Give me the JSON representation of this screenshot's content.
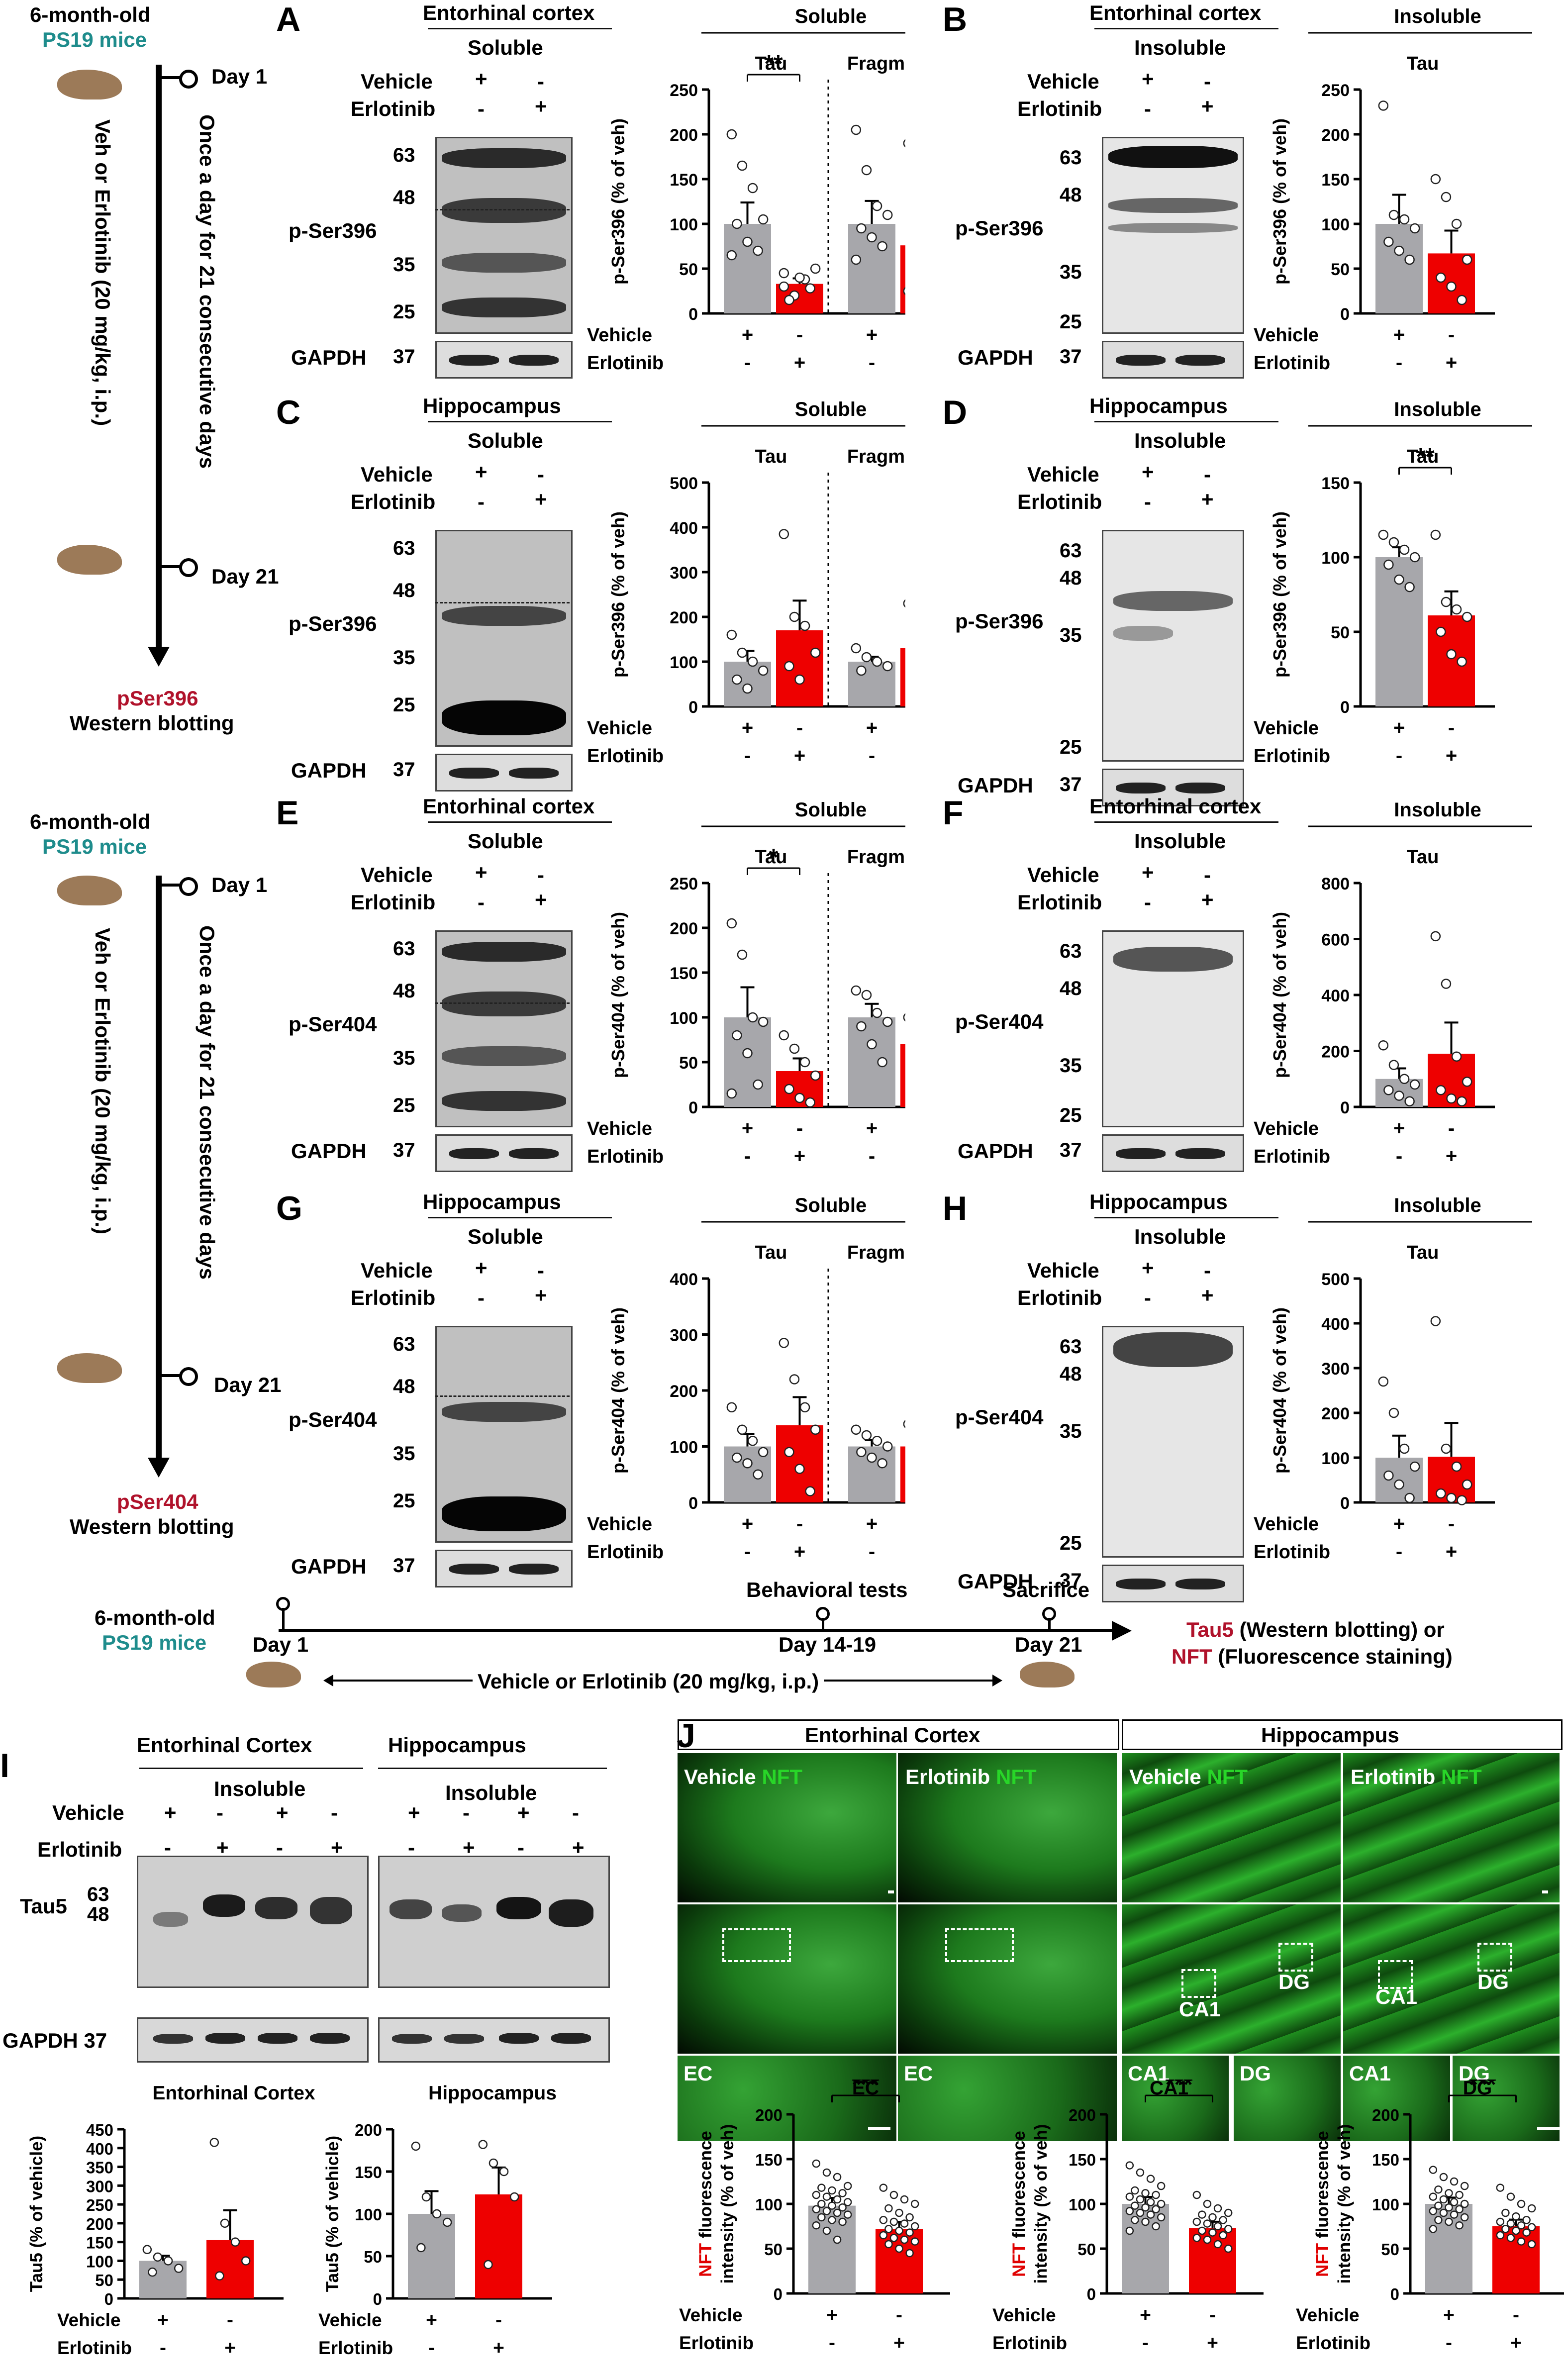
{
  "panels": {
    "A": {
      "label": "A",
      "region": "Entorhinal cortex",
      "fraction": "Soluble",
      "section": "Soluble",
      "marker": "p-Ser396",
      "mw": [
        "63",
        "48",
        "35",
        "25"
      ]
    },
    "B": {
      "label": "B",
      "region": "Entorhinal cortex",
      "fraction": "Insoluble",
      "section": "Insoluble",
      "marker": "p-Ser396",
      "mw": [
        "63",
        "48",
        "35",
        "25"
      ]
    },
    "C": {
      "label": "C",
      "region": "Hippocampus",
      "fraction": "Soluble",
      "section": "Soluble",
      "marker": "p-Ser396",
      "mw": [
        "63",
        "48",
        "35",
        "25"
      ]
    },
    "D": {
      "label": "D",
      "region": "Hippocampus",
      "fraction": "Insoluble",
      "section": "Insoluble",
      "marker": "p-Ser396",
      "mw": [
        "63",
        "48",
        "35",
        "25"
      ]
    },
    "E": {
      "label": "E",
      "region": "Entorhinal cortex",
      "fraction": "Soluble",
      "section": "Soluble",
      "marker": "p-Ser404",
      "mw": [
        "63",
        "48",
        "35",
        "25"
      ]
    },
    "F": {
      "label": "F",
      "region": "Entorhinal cortex",
      "fraction": "Insoluble",
      "section": "Insoluble",
      "marker": "p-Ser404",
      "mw": [
        "63",
        "48",
        "35",
        "25"
      ]
    },
    "G": {
      "label": "G",
      "region": "Hippocampus",
      "fraction": "Soluble",
      "section": "Soluble",
      "marker": "p-Ser404",
      "mw": [
        "63",
        "48",
        "35",
        "25"
      ]
    },
    "H": {
      "label": "H",
      "region": "Hippocampus",
      "fraction": "Insoluble",
      "section": "Insoluble",
      "marker": "p-Ser404",
      "mw": [
        "63",
        "48",
        "35",
        "25"
      ]
    },
    "I": {
      "label": "I",
      "region1": "Entorhinal Cortex",
      "region2": "Hippocampus",
      "fraction": "Insoluble",
      "marker": "Tau5",
      "mw": [
        "63",
        "48"
      ],
      "gapdh": "GAPDH 37"
    },
    "J": {
      "label": "J",
      "region1": "Entorhinal Cortex",
      "region2": "Hippocampus",
      "vehicle": "Vehicle",
      "erlotinib": "Erlotinib",
      "nft": "NFT",
      "ec": "EC",
      "ca1": "CA1",
      "dg": "DG"
    }
  },
  "common": {
    "vehicle": "Vehicle",
    "erlotinib": "Erlotinib",
    "plus": "+",
    "minus": "-",
    "gapdh": "GAPDH",
    "gapdh_mw": "37",
    "tau": "Tau",
    "fragments": "Fragments"
  },
  "timeline1": {
    "age": "6-month-old",
    "strain": "PS19 mice",
    "day1": "Day 1",
    "day21": "Day 21",
    "regimen": "Once a day for 21 consecutive days",
    "treatment": "Veh or Erlotinib (20 mg/kg, i.p.)",
    "endpoint": "pSer396",
    "method": "Western blotting"
  },
  "timeline2": {
    "age": "6-month-old",
    "strain": "PS19 mice",
    "day1": "Day 1",
    "day21": "Day 21",
    "regimen": "Once a day for 21 consecutive days",
    "treatment": "Veh or Erlotinib (20 mg/kg, i.p.)",
    "endpoint": "pSer404",
    "method": "Western blotting"
  },
  "timeline3": {
    "age": "6-month-old",
    "strain": "PS19 mice",
    "day1": "Day 1",
    "behavior": "Behavioral tests",
    "days_behavior": "Day 14-19",
    "sacrifice": "Sacrifice",
    "day21": "Day 21",
    "treatment": "Vehicle or Erlotinib (20 mg/kg, i.p.)",
    "out1_red": "Tau5",
    "out1": "(Western blotting) or",
    "out2_red": "NFT",
    "out2": "(Fluorescence staining)"
  },
  "colors": {
    "vehicle": "#a7a7ab",
    "erlotinib": "#ee0000",
    "nft": "#28d628",
    "accent_red": "#b0122b",
    "accent_teal": "#1e8c8c"
  },
  "chart_data": [
    {
      "id": "A",
      "type": "bar",
      "title": "Soluble",
      "ylabel": "p-Ser396 (% of veh)",
      "ylim": [
        0,
        250
      ],
      "yticks": [
        0,
        50,
        100,
        150,
        200,
        250
      ],
      "groups": [
        "Tau",
        "Fragments"
      ],
      "series": [
        {
          "name": "Vehicle",
          "values": [
            100,
            100
          ]
        },
        {
          "name": "Erlotinib",
          "values": [
            33,
            76
          ]
        }
      ],
      "points": [
        [
          [
            200,
            165,
            140,
            105,
            100,
            80,
            70,
            65
          ],
          [
            30,
            20,
            38,
            50,
            15,
            40,
            28,
            45
          ]
        ],
        [
          [
            205,
            160,
            120,
            110,
            95,
            85,
            75,
            60
          ],
          [
            190,
            120,
            95,
            80,
            60,
            40,
            30,
            25
          ]
        ]
      ],
      "sig": [
        {
          "group": 0,
          "label": "**"
        }
      ]
    },
    {
      "id": "B",
      "type": "bar",
      "title": "Insoluble",
      "ylabel": "p-Ser396 (% of veh)",
      "ylim": [
        0,
        250
      ],
      "yticks": [
        0,
        50,
        100,
        150,
        200,
        250
      ],
      "groups": [
        "Tau"
      ],
      "series": [
        {
          "name": "Vehicle",
          "values": [
            100
          ]
        },
        {
          "name": "Erlotinib",
          "values": [
            67
          ]
        }
      ],
      "points": [
        [
          [
            232,
            110,
            105,
            95,
            80,
            70,
            60
          ],
          [
            150,
            130,
            100,
            60,
            40,
            30,
            15
          ]
        ]
      ],
      "sig": []
    },
    {
      "id": "C",
      "type": "bar",
      "title": "Soluble",
      "ylabel": "p-Ser396 (% of veh)",
      "ylim": [
        0,
        500
      ],
      "yticks": [
        0,
        100,
        200,
        300,
        400,
        500
      ],
      "groups": [
        "Tau",
        "Fragments"
      ],
      "series": [
        {
          "name": "Vehicle",
          "values": [
            100,
            100
          ]
        },
        {
          "name": "Erlotinib",
          "values": [
            170,
            130
          ]
        }
      ],
      "points": [
        [
          [
            160,
            120,
            100,
            80,
            60,
            40
          ],
          [
            385,
            200,
            180,
            120,
            90,
            60
          ]
        ],
        [
          [
            130,
            110,
            100,
            90,
            80
          ],
          [
            230,
            150,
            120,
            80,
            60
          ]
        ]
      ],
      "sig": []
    },
    {
      "id": "D",
      "type": "bar",
      "title": "Insoluble",
      "ylabel": "p-Ser396 (% of veh)",
      "ylim": [
        0,
        150
      ],
      "yticks": [
        0,
        50,
        100,
        150
      ],
      "groups": [
        "Tau"
      ],
      "series": [
        {
          "name": "Vehicle",
          "values": [
            100
          ]
        },
        {
          "name": "Erlotinib",
          "values": [
            61
          ]
        }
      ],
      "points": [
        [
          [
            115,
            110,
            105,
            100,
            95,
            85,
            80
          ],
          [
            115,
            70,
            65,
            60,
            50,
            35,
            30
          ]
        ]
      ],
      "sig": [
        {
          "group": 0,
          "label": "**"
        }
      ]
    },
    {
      "id": "E",
      "type": "bar",
      "title": "Soluble",
      "ylabel": "p-Ser404 (% of veh)",
      "ylim": [
        0,
        250
      ],
      "yticks": [
        0,
        50,
        100,
        150,
        200,
        250
      ],
      "groups": [
        "Tau",
        "Fragments"
      ],
      "series": [
        {
          "name": "Vehicle",
          "values": [
            100,
            100
          ]
        },
        {
          "name": "Erlotinib",
          "values": [
            40,
            70
          ]
        }
      ],
      "points": [
        [
          [
            205,
            170,
            100,
            95,
            80,
            60,
            25,
            15
          ],
          [
            80,
            65,
            50,
            35,
            20,
            10,
            5
          ]
        ],
        [
          [
            130,
            125,
            105,
            95,
            90,
            70,
            50
          ],
          [
            100,
            90,
            70,
            60,
            50,
            40,
            10
          ]
        ]
      ],
      "sig": [
        {
          "group": 0,
          "label": "*"
        }
      ]
    },
    {
      "id": "F",
      "type": "bar",
      "title": "Insoluble",
      "ylabel": "p-Ser404 (% of veh)",
      "ylim": [
        0,
        800
      ],
      "yticks": [
        0,
        200,
        400,
        600,
        800
      ],
      "groups": [
        "Tau"
      ],
      "series": [
        {
          "name": "Vehicle",
          "values": [
            100
          ]
        },
        {
          "name": "Erlotinib",
          "values": [
            190
          ]
        }
      ],
      "points": [
        [
          [
            220,
            150,
            100,
            80,
            60,
            40,
            20
          ],
          [
            610,
            440,
            180,
            90,
            60,
            30,
            20
          ]
        ]
      ],
      "sig": []
    },
    {
      "id": "G",
      "type": "bar",
      "title": "Soluble",
      "ylabel": "p-Ser404 (% of veh)",
      "ylim": [
        0,
        400
      ],
      "yticks": [
        0,
        100,
        200,
        300,
        400
      ],
      "groups": [
        "Tau",
        "Fragments"
      ],
      "series": [
        {
          "name": "Vehicle",
          "values": [
            100,
            100
          ]
        },
        {
          "name": "Erlotinib",
          "values": [
            138,
            100
          ]
        }
      ],
      "points": [
        [
          [
            170,
            130,
            110,
            90,
            80,
            70,
            50
          ],
          [
            285,
            220,
            170,
            130,
            90,
            60,
            20
          ]
        ],
        [
          [
            130,
            120,
            110,
            100,
            90,
            80,
            70
          ],
          [
            140,
            120,
            110,
            100,
            80,
            60,
            30
          ]
        ]
      ],
      "sig": []
    },
    {
      "id": "H",
      "type": "bar",
      "title": "Insoluble",
      "ylabel": "p-Ser404 (% of veh)",
      "ylim": [
        0,
        500
      ],
      "yticks": [
        0,
        100,
        200,
        300,
        400,
        500
      ],
      "groups": [
        "Tau"
      ],
      "series": [
        {
          "name": "Vehicle",
          "values": [
            100
          ]
        },
        {
          "name": "Erlotinib",
          "values": [
            102
          ]
        }
      ],
      "points": [
        [
          [
            270,
            200,
            120,
            80,
            60,
            40,
            10
          ],
          [
            405,
            120,
            80,
            40,
            20,
            10,
            5
          ]
        ]
      ],
      "sig": []
    },
    {
      "id": "I1",
      "type": "bar",
      "title": "Entorhinal Cortex",
      "ylabel": "Tau5 (% of vehicle)",
      "ylim": [
        0,
        450
      ],
      "yticks": [
        0,
        50,
        100,
        150,
        200,
        250,
        300,
        350,
        400,
        450
      ],
      "groups": [
        ""
      ],
      "series": [
        {
          "name": "Vehicle",
          "values": [
            100
          ]
        },
        {
          "name": "Erlotinib",
          "values": [
            155
          ]
        }
      ],
      "points": [
        [
          [
            130,
            110,
            100,
            80,
            70
          ],
          [
            415,
            200,
            150,
            100,
            60
          ]
        ]
      ],
      "sig": []
    },
    {
      "id": "I2",
      "type": "bar",
      "title": "Hippocampus",
      "ylabel": "Tau5 (% of vehicle)",
      "ylim": [
        0,
        200
      ],
      "yticks": [
        0,
        50,
        100,
        150,
        200
      ],
      "groups": [
        ""
      ],
      "series": [
        {
          "name": "Vehicle",
          "values": [
            100
          ]
        },
        {
          "name": "Erlotinib",
          "values": [
            123
          ]
        }
      ],
      "points": [
        [
          [
            180,
            120,
            100,
            90,
            60
          ],
          [
            182,
            160,
            150,
            120,
            40
          ]
        ]
      ],
      "sig": []
    },
    {
      "id": "J1",
      "type": "bar",
      "title": "EC",
      "ylabel": "NFT fluorescence intensity (% of veh)",
      "ylim": [
        0,
        200
      ],
      "yticks": [
        0,
        50,
        100,
        150,
        200
      ],
      "groups": [
        ""
      ],
      "series": [
        {
          "name": "Vehicle",
          "values": [
            98
          ]
        },
        {
          "name": "Erlotinib",
          "values": [
            72
          ]
        }
      ],
      "points": [
        [
          [
            145,
            135,
            130,
            120,
            118,
            115,
            112,
            110,
            108,
            105,
            102,
            100,
            98,
            96,
            94,
            92,
            90,
            88,
            85,
            82,
            80,
            76,
            70,
            60
          ],
          [
            118,
            110,
            105,
            100,
            95,
            90,
            85,
            82,
            80,
            78,
            75,
            72,
            70,
            68,
            65,
            62,
            60,
            58,
            55,
            50,
            45
          ]
        ]
      ],
      "sig": [
        {
          "group": 0,
          "label": "***"
        }
      ]
    },
    {
      "id": "J2",
      "type": "bar",
      "title": "CA1",
      "ylabel": "NFT fluorescence intensity (% of veh)",
      "ylim": [
        0,
        200
      ],
      "yticks": [
        0,
        50,
        100,
        150,
        200
      ],
      "groups": [
        ""
      ],
      "series": [
        {
          "name": "Vehicle",
          "values": [
            100
          ]
        },
        {
          "name": "Erlotinib",
          "values": [
            73
          ]
        }
      ],
      "points": [
        [
          [
            143,
            135,
            128,
            120,
            115,
            112,
            110,
            108,
            105,
            102,
            100,
            98,
            96,
            94,
            92,
            90,
            88,
            85,
            82,
            80,
            75,
            70
          ],
          [
            110,
            100,
            95,
            90,
            88,
            85,
            82,
            80,
            78,
            75,
            72,
            70,
            68,
            65,
            62,
            60,
            55,
            50
          ]
        ]
      ],
      "sig": [
        {
          "group": 0,
          "label": "***"
        }
      ]
    },
    {
      "id": "J3",
      "type": "bar",
      "title": "DG",
      "ylabel": "NFT fluorescence intensity (% of veh)",
      "ylim": [
        0,
        200
      ],
      "yticks": [
        0,
        50,
        100,
        150,
        200
      ],
      "groups": [
        ""
      ],
      "series": [
        {
          "name": "Vehicle",
          "values": [
            100
          ]
        },
        {
          "name": "Erlotinib",
          "values": [
            75
          ]
        }
      ],
      "points": [
        [
          [
            138,
            130,
            125,
            120,
            116,
            112,
            110,
            108,
            105,
            102,
            100,
            98,
            96,
            94,
            92,
            90,
            88,
            85,
            82,
            80,
            76,
            72
          ],
          [
            118,
            108,
            100,
            95,
            90,
            86,
            82,
            80,
            78,
            76,
            74,
            72,
            70,
            68,
            65,
            62,
            58,
            55
          ]
        ]
      ],
      "sig": [
        {
          "group": 0,
          "label": "***"
        }
      ]
    }
  ]
}
